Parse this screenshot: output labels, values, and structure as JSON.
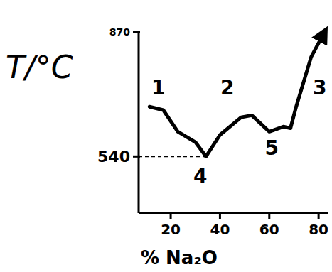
{
  "chart_data": {
    "type": "line",
    "y_label": "T/°C",
    "x_label": "% Na₂O",
    "x": [
      11.4,
      17,
      22.9,
      30,
      34.3,
      40,
      48.6,
      52.9,
      60,
      65.7,
      68.6,
      70.9,
      77,
      82
    ],
    "series": [
      {
        "name": null,
        "color": "#000000",
        "values": [
          672,
          663,
          606,
          578,
          540,
          597,
          644,
          649,
          606,
          619,
          615,
          672,
          804,
          865
        ]
      }
    ],
    "xlim": [
      7,
      84
    ],
    "xticks": [
      20,
      40,
      60,
      80
    ],
    "ylim": [
      390,
      870
    ],
    "yticks": [
      540,
      870
    ],
    "annotations": [
      {
        "text": "1",
        "x": 15,
        "y": 705
      },
      {
        "text": "2",
        "x": 43,
        "y": 705
      },
      {
        "text": "3",
        "x": 80.5,
        "y": 705
      },
      {
        "text": "4",
        "x": 32,
        "y": 470
      },
      {
        "text": "5",
        "x": 61,
        "y": 545
      }
    ],
    "grid": false
  }
}
